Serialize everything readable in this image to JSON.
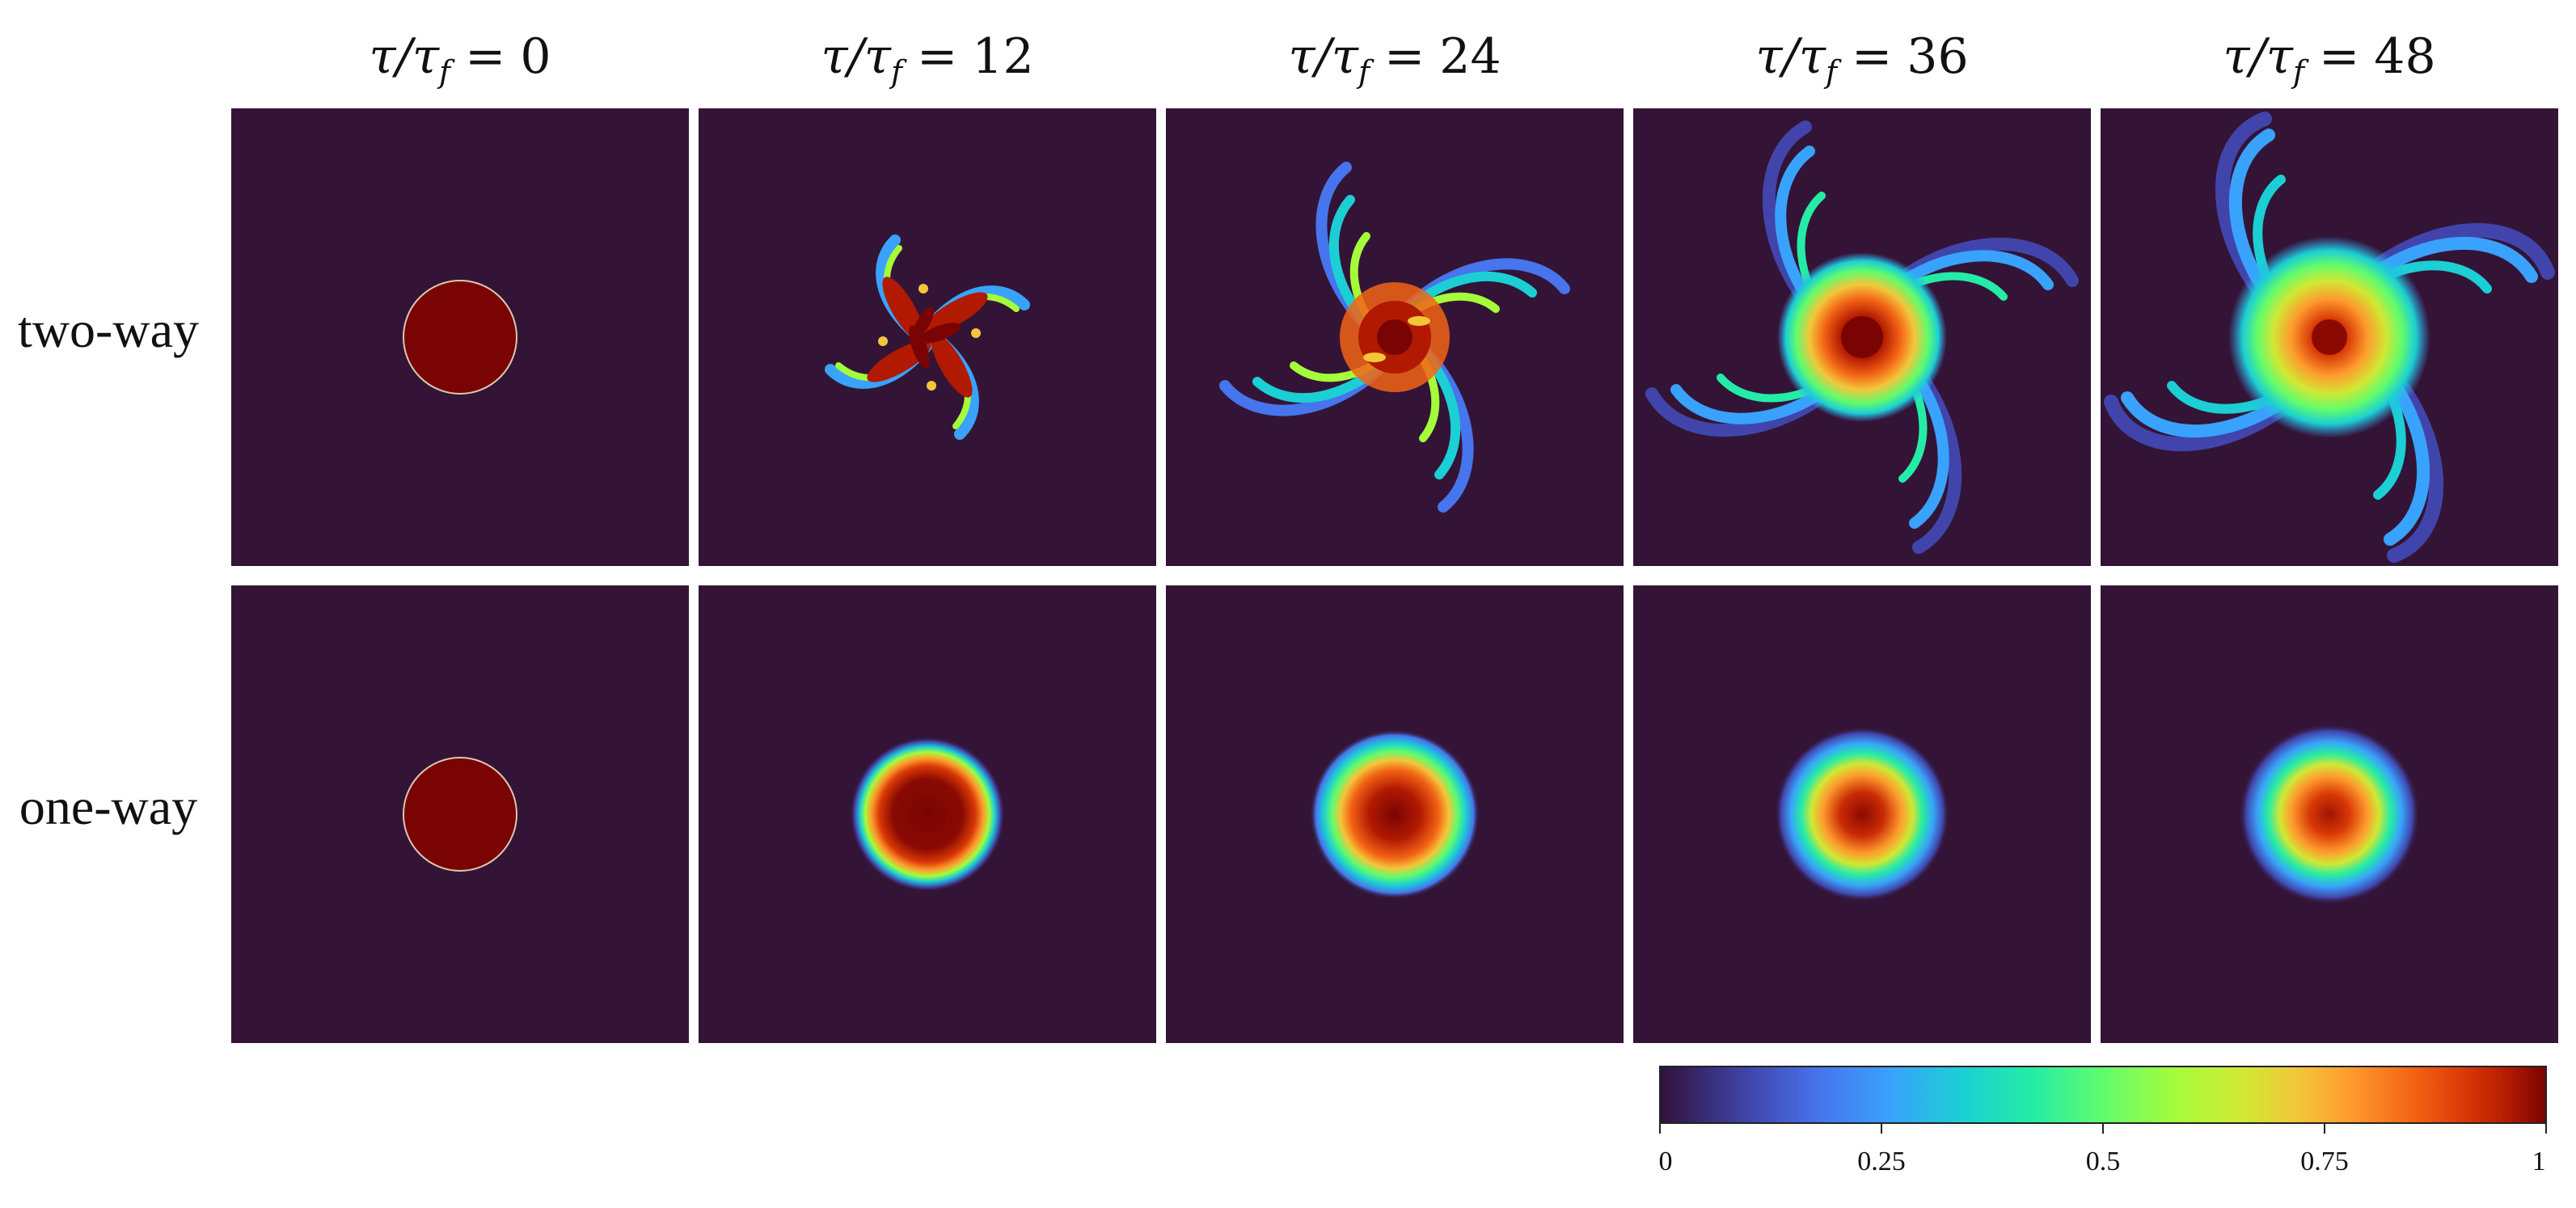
{
  "figure": {
    "columns": [
      {
        "symbol": "τ/τ",
        "sub": "f",
        "eq": "=",
        "value": "0"
      },
      {
        "symbol": "τ/τ",
        "sub": "f",
        "eq": "=",
        "value": "12"
      },
      {
        "symbol": "τ/τ",
        "sub": "f",
        "eq": "=",
        "value": "24"
      },
      {
        "symbol": "τ/τ",
        "sub": "f",
        "eq": "=",
        "value": "36"
      },
      {
        "symbol": "τ/τ",
        "sub": "f",
        "eq": "=",
        "value": "48"
      }
    ],
    "rows": [
      {
        "label": "two-way"
      },
      {
        "label": "one-way"
      }
    ],
    "colorbar": {
      "ticks": [
        "0",
        "0.25",
        "0.5",
        "0.75",
        "1"
      ],
      "range": [
        0,
        1
      ],
      "colormap": "turbo"
    },
    "background_color": "#331436",
    "peak_color": "#7a0403"
  }
}
